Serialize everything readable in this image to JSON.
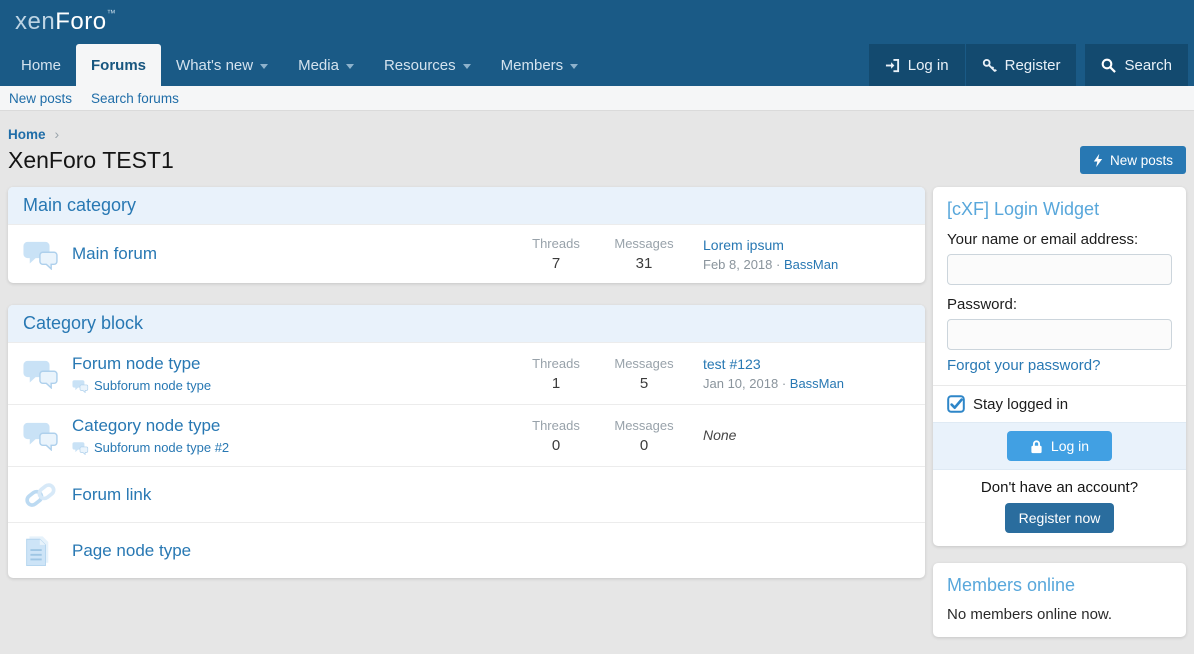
{
  "header": {
    "logo": {
      "part1": "xen",
      "part2": "Foro",
      "tm": "™"
    },
    "nav": [
      {
        "label": "Home",
        "active": false,
        "has_menu": false
      },
      {
        "label": "Forums",
        "active": true,
        "has_menu": false
      },
      {
        "label": "What's new",
        "active": false,
        "has_menu": true
      },
      {
        "label": "Media",
        "active": false,
        "has_menu": true
      },
      {
        "label": "Resources",
        "active": false,
        "has_menu": true
      },
      {
        "label": "Members",
        "active": false,
        "has_menu": true
      }
    ],
    "actions": [
      {
        "label": "Log in",
        "icon": "sign-in-icon"
      },
      {
        "label": "Register",
        "icon": "key-icon"
      },
      {
        "label": "Search",
        "icon": "search-icon"
      }
    ],
    "subnav": [
      {
        "label": "New posts"
      },
      {
        "label": "Search forums"
      }
    ]
  },
  "breadcrumb": {
    "home": "Home",
    "separator": "›"
  },
  "page": {
    "title": "XenForo TEST1",
    "new_posts_button": "New posts"
  },
  "columns": {
    "threads_label": "Threads",
    "messages_label": "Messages"
  },
  "categories": [
    {
      "title": "Main category",
      "nodes": [
        {
          "type": "forum",
          "title": "Main forum",
          "threads": "7",
          "messages": "31",
          "last_post": {
            "title": "Lorem ipsum",
            "date": "Feb 8, 2018",
            "separator": "·",
            "author": "BassMan"
          }
        }
      ]
    },
    {
      "title": "Category block",
      "nodes": [
        {
          "type": "forum",
          "title": "Forum node type",
          "subforum": "Subforum node type",
          "threads": "1",
          "messages": "5",
          "last_post": {
            "title": "test #123",
            "date": "Jan 10, 2018",
            "separator": "·",
            "author": "BassMan"
          }
        },
        {
          "type": "forum",
          "title": "Category node type",
          "subforum": "Subforum node type #2",
          "threads": "0",
          "messages": "0",
          "last_post_none": "None"
        },
        {
          "type": "link",
          "title": "Forum link"
        },
        {
          "type": "page",
          "title": "Page node type"
        }
      ]
    }
  ],
  "sidebar": {
    "login_widget": {
      "title": "[cXF] Login Widget",
      "name_label": "Your name or email address:",
      "name_value": "",
      "password_label": "Password:",
      "password_value": "",
      "forgot_link": "Forgot your password?",
      "stay_logged_in_label": "Stay logged in",
      "stay_logged_in_checked": true,
      "login_button": "Log in",
      "no_account_text": "Don't have an account?",
      "register_button": "Register now"
    },
    "members_online": {
      "title": "Members online",
      "empty_text": "No members online now."
    }
  },
  "colors": {
    "header_bg": "#1a5a86",
    "header_action_bg": "#134a6f",
    "accent_link": "#2878b3",
    "subnav_link": "#1f6da8",
    "block_header_bg": "#e9f2fb",
    "widget_title": "#58a7db",
    "login_button_bg": "#41a0e3",
    "register_button_bg": "#2a6d9e",
    "new_posts_button_bg": "#2878b3",
    "page_bg": "#e6e6e6"
  }
}
